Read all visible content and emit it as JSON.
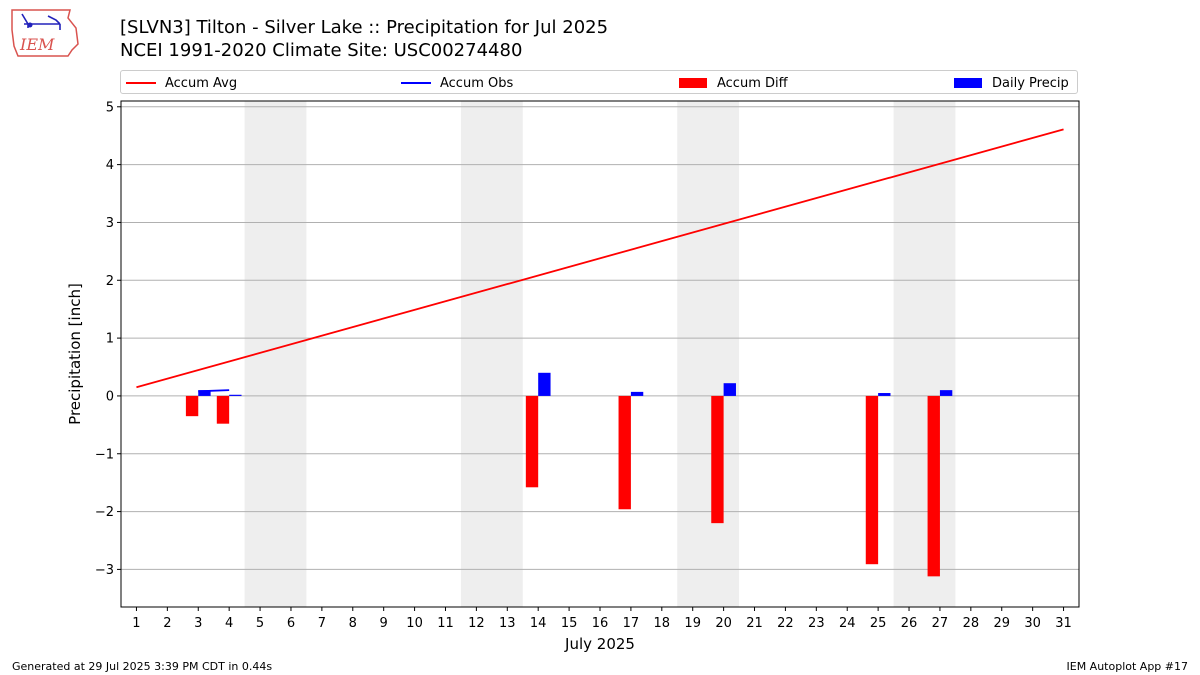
{
  "header": {
    "title_line1": "[SLVN3] Tilton - Silver Lake :: Precipitation for Jul 2025",
    "title_line2": "NCEI 1991-2020 Climate Site: USC00274480",
    "logo_text": "IEM"
  },
  "legend": {
    "position": "top",
    "items": [
      {
        "label": "Accum Avg",
        "kind": "line",
        "color": "#ff0000"
      },
      {
        "label": "Accum Obs",
        "kind": "line",
        "color": "#0000ff"
      },
      {
        "label": "Accum Diff",
        "kind": "bar",
        "color": "#ff0000"
      },
      {
        "label": "Daily Precip",
        "kind": "bar",
        "color": "#0000ff"
      }
    ]
  },
  "footer": {
    "left": "Generated at 29 Jul 2025 3:39 PM CDT in 0.44s",
    "right": "IEM Autoplot App #17"
  },
  "chart_data": {
    "type": "bar",
    "xlabel": "July 2025",
    "ylabel": "Precipitation [inch]",
    "xlim": [
      0.5,
      31.5
    ],
    "ylim": [
      -3.65,
      5.1
    ],
    "grid": true,
    "y_ticks": [
      -3,
      -2,
      -1,
      0,
      1,
      2,
      3,
      4,
      5
    ],
    "y_tick_labels": [
      "−3",
      "−2",
      "−1",
      "0",
      "1",
      "2",
      "3",
      "4",
      "5"
    ],
    "x_ticks": [
      1,
      2,
      3,
      4,
      5,
      6,
      7,
      8,
      9,
      10,
      11,
      12,
      13,
      14,
      15,
      16,
      17,
      18,
      19,
      20,
      21,
      22,
      23,
      24,
      25,
      26,
      27,
      28,
      29,
      30,
      31
    ],
    "weekend_spans": [
      [
        4.5,
        6.5
      ],
      [
        11.5,
        13.5
      ],
      [
        18.5,
        20.5
      ],
      [
        25.5,
        27.5
      ]
    ],
    "accum_avg": {
      "x": [
        1,
        31
      ],
      "y": [
        0.15,
        4.61
      ]
    },
    "accum_obs": {
      "x": [
        3,
        4
      ],
      "y": [
        0.08,
        0.1
      ]
    },
    "accum_diff": [
      {
        "day": 3,
        "value": -0.35
      },
      {
        "day": 4,
        "value": -0.48
      },
      {
        "day": 14,
        "value": -1.58
      },
      {
        "day": 17,
        "value": -1.96
      },
      {
        "day": 20,
        "value": -2.2
      },
      {
        "day": 25,
        "value": -2.91
      },
      {
        "day": 27,
        "value": -3.12
      }
    ],
    "daily_precip": [
      {
        "day": 3,
        "value": 0.1
      },
      {
        "day": 4,
        "value": 0.02
      },
      {
        "day": 14,
        "value": 0.4
      },
      {
        "day": 17,
        "value": 0.07
      },
      {
        "day": 20,
        "value": 0.22
      },
      {
        "day": 25,
        "value": 0.05
      },
      {
        "day": 27,
        "value": 0.1
      }
    ]
  }
}
